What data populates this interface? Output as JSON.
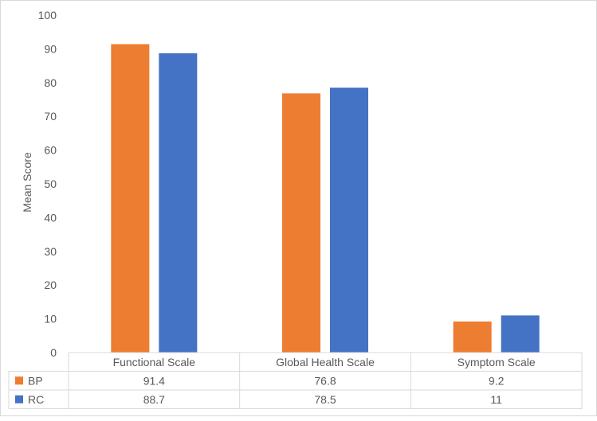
{
  "chart_data": {
    "type": "bar",
    "ylabel": "Mean Score",
    "ylim": [
      0,
      100
    ],
    "yticks": [
      0,
      10,
      20,
      30,
      40,
      50,
      60,
      70,
      80,
      90,
      100
    ],
    "categories": [
      "Functional Scale",
      "Global Health Scale",
      "Symptom Scale"
    ],
    "series": [
      {
        "name": "BP",
        "values": [
          91.4,
          76.8,
          9.2
        ],
        "labels": [
          "91.4",
          "76.8",
          "9.2"
        ],
        "color": "#ed7d31"
      },
      {
        "name": "RC",
        "values": [
          88.7,
          78.5,
          11
        ],
        "labels": [
          "88.7",
          "78.5",
          "11"
        ],
        "color": "#4472c4"
      }
    ],
    "grid": false,
    "legend": "data table",
    "data_table": true
  }
}
